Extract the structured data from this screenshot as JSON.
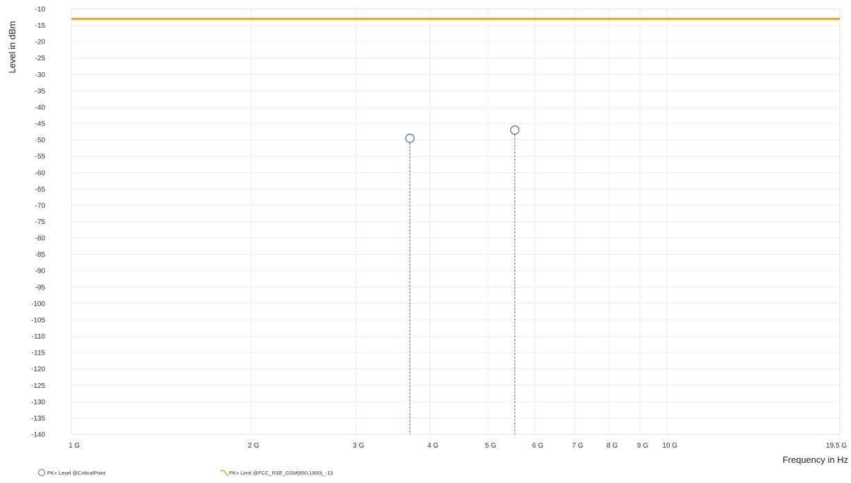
{
  "chart_data": {
    "type": "scatter",
    "title": "",
    "xlabel": "Frequency in Hz",
    "ylabel": "Level in dBm",
    "x_scale": "log",
    "xlim": [
      1000000000,
      19500000000
    ],
    "ylim": [
      -140,
      -10
    ],
    "y_ticks": [
      -10,
      -15,
      -20,
      -25,
      -30,
      -35,
      -40,
      -45,
      -50,
      -55,
      -60,
      -65,
      -70,
      -75,
      -80,
      -85,
      -90,
      -95,
      -100,
      -105,
      -110,
      -115,
      -120,
      -125,
      -130,
      -135,
      -140
    ],
    "x_ticks": [
      {
        "value": 1000000000,
        "label": "1 G"
      },
      {
        "value": 2000000000,
        "label": "2 G"
      },
      {
        "value": 3000000000,
        "label": "3 G"
      },
      {
        "value": 4000000000,
        "label": "4 G"
      },
      {
        "value": 5000000000,
        "label": "5 G"
      },
      {
        "value": 6000000000,
        "label": "6 G"
      },
      {
        "value": 7000000000,
        "label": "7 G"
      },
      {
        "value": 8000000000,
        "label": "8 G"
      },
      {
        "value": 9000000000,
        "label": "9 G"
      },
      {
        "value": 10000000000,
        "label": "10 G"
      },
      {
        "value": 19500000000,
        "label": "19.5 G"
      }
    ],
    "grid": true,
    "legend_position": "bottom-left",
    "series": [
      {
        "name": "PK+ Level @CriticalPoint",
        "kind": "critical-points",
        "marker": "circle",
        "color": "#3c6ea8",
        "points": [
          {
            "x": 3700000000,
            "y": -49.5
          },
          {
            "x": 5550000000,
            "y": -47
          }
        ]
      },
      {
        "name": "PK+ Limit @FCC_RSE_GSM(850,1900)_-13",
        "kind": "limit-line",
        "color": "#f0a020",
        "points": [
          {
            "x": 1000000000,
            "y": -13
          },
          {
            "x": 19500000000,
            "y": -13
          }
        ]
      }
    ]
  }
}
